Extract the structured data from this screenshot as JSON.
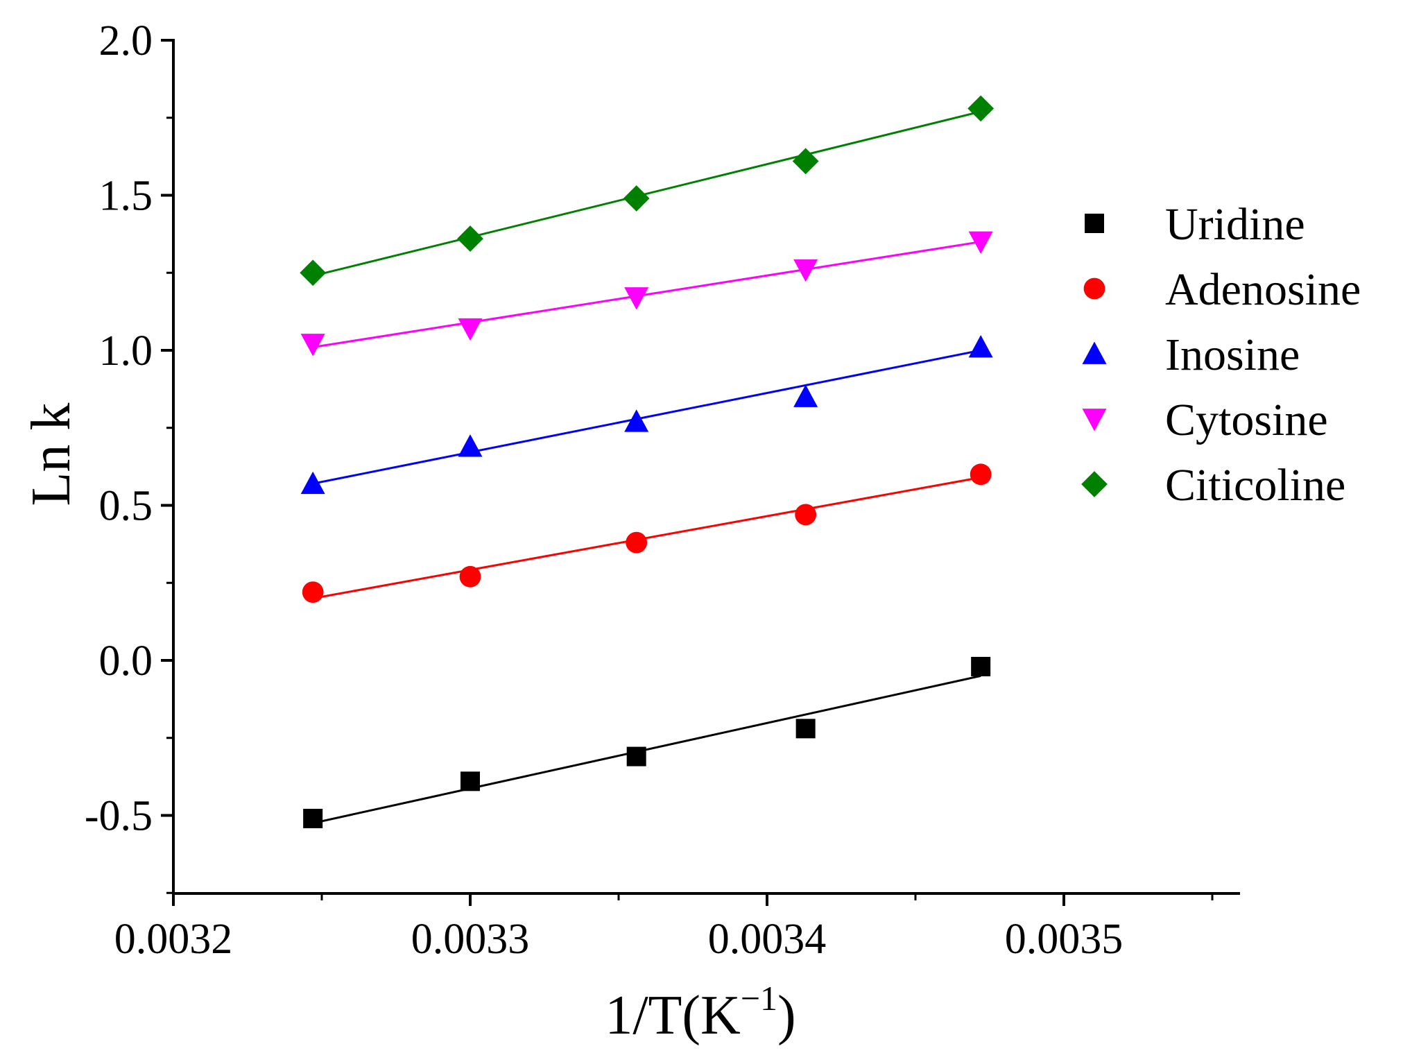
{
  "chart_data": {
    "type": "scatter",
    "title": "",
    "xlabel": "1/T(K",
    "xlabel_superscript": "−1",
    "xlabel_close": ")",
    "ylabel": "Ln k",
    "xlim": [
      0.0032,
      0.00356
    ],
    "ylim": [
      -0.75,
      2.0
    ],
    "xticks": [
      0.0032,
      0.0033,
      0.0034,
      0.0035
    ],
    "xtick_labels": [
      "0.0032",
      "0.0033",
      "0.0034",
      "0.0035"
    ],
    "yticks": [
      -0.5,
      0.0,
      0.5,
      1.0,
      1.5,
      2.0
    ],
    "ytick_labels": [
      "-0.5",
      "0.0",
      "0.5",
      "1.0",
      "1.5",
      "2.0"
    ],
    "grid": false,
    "legend_position": "right",
    "x": [
      0.003247,
      0.0033,
      0.003356,
      0.003413,
      0.003472
    ],
    "series": [
      {
        "name": "Uridine",
        "marker": "square",
        "color": "#000000",
        "values": [
          -0.51,
          -0.39,
          -0.31,
          -0.22,
          -0.02
        ],
        "fit": [
          -0.525,
          -0.05
        ]
      },
      {
        "name": "Adenosine",
        "marker": "circle",
        "color": "#ff0000",
        "values": [
          0.22,
          0.27,
          0.38,
          0.47,
          0.6
        ],
        "fit": [
          0.2,
          0.59
        ]
      },
      {
        "name": "Inosine",
        "marker": "triangle-up",
        "color": "#0000ff",
        "values": [
          0.57,
          0.69,
          0.77,
          0.85,
          1.01
        ],
        "fit": [
          0.57,
          1.0
        ]
      },
      {
        "name": "Cytosine",
        "marker": "triangle-down",
        "color": "#ff00ff",
        "values": [
          1.02,
          1.07,
          1.17,
          1.26,
          1.35
        ],
        "fit": [
          1.01,
          1.35
        ]
      },
      {
        "name": "Citicoline",
        "marker": "diamond",
        "color": "#008000",
        "values": [
          1.25,
          1.36,
          1.49,
          1.61,
          1.78
        ],
        "fit": [
          1.24,
          1.77
        ]
      }
    ]
  }
}
